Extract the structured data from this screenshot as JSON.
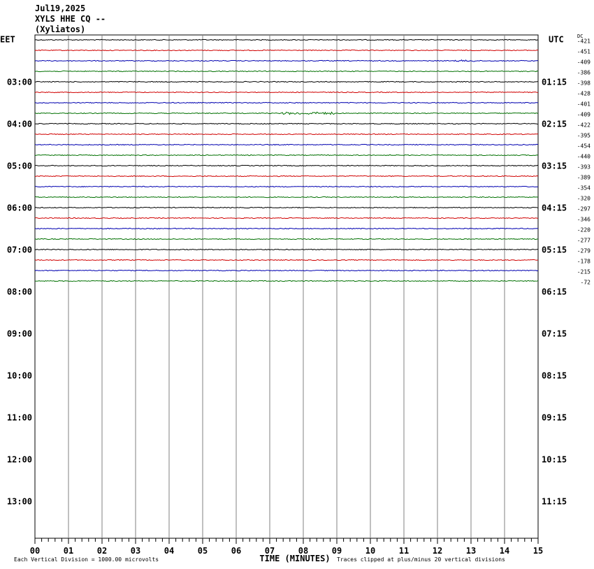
{
  "header": {
    "date": "Jul19,2025",
    "station": "XYLS HHE CQ --",
    "location": "(Xyliatos)"
  },
  "left_axis": {
    "label": "EET",
    "hours": [
      "03:00",
      "04:00",
      "05:00",
      "06:00",
      "07:00",
      "08:00",
      "09:00",
      "10:00",
      "11:00",
      "12:00",
      "13:00"
    ]
  },
  "right_axis": {
    "label": "UTC",
    "hours": [
      "01:15",
      "02:15",
      "03:15",
      "04:15",
      "05:15",
      "06:15",
      "07:15",
      "08:15",
      "09:15",
      "10:15",
      "11:15"
    ]
  },
  "dc_label": "DC",
  "traces": {
    "colors": [
      "#000000",
      "#d00000",
      "#0000b0",
      "#007000"
    ],
    "dc_offsets": [
      "-421",
      "-451",
      "-409",
      "-386",
      "-398",
      "-428",
      "-401",
      "-409",
      "-422",
      "-395",
      "-454",
      "-440",
      "-393",
      "-389",
      "-354",
      "-320",
      "-297",
      "-346",
      "-220",
      "-277",
      "-279",
      "-178",
      "-215",
      "-72"
    ]
  },
  "x_axis": {
    "ticks": [
      "00",
      "01",
      "02",
      "03",
      "04",
      "05",
      "06",
      "07",
      "08",
      "09",
      "10",
      "11",
      "12",
      "13",
      "14",
      "15"
    ],
    "title": "TIME (MINUTES)"
  },
  "footer": {
    "scale": "Each Vertical Division = 1000.00 microvolts",
    "clip": "Traces clipped at plus/minus 20 vertical divisions"
  }
}
